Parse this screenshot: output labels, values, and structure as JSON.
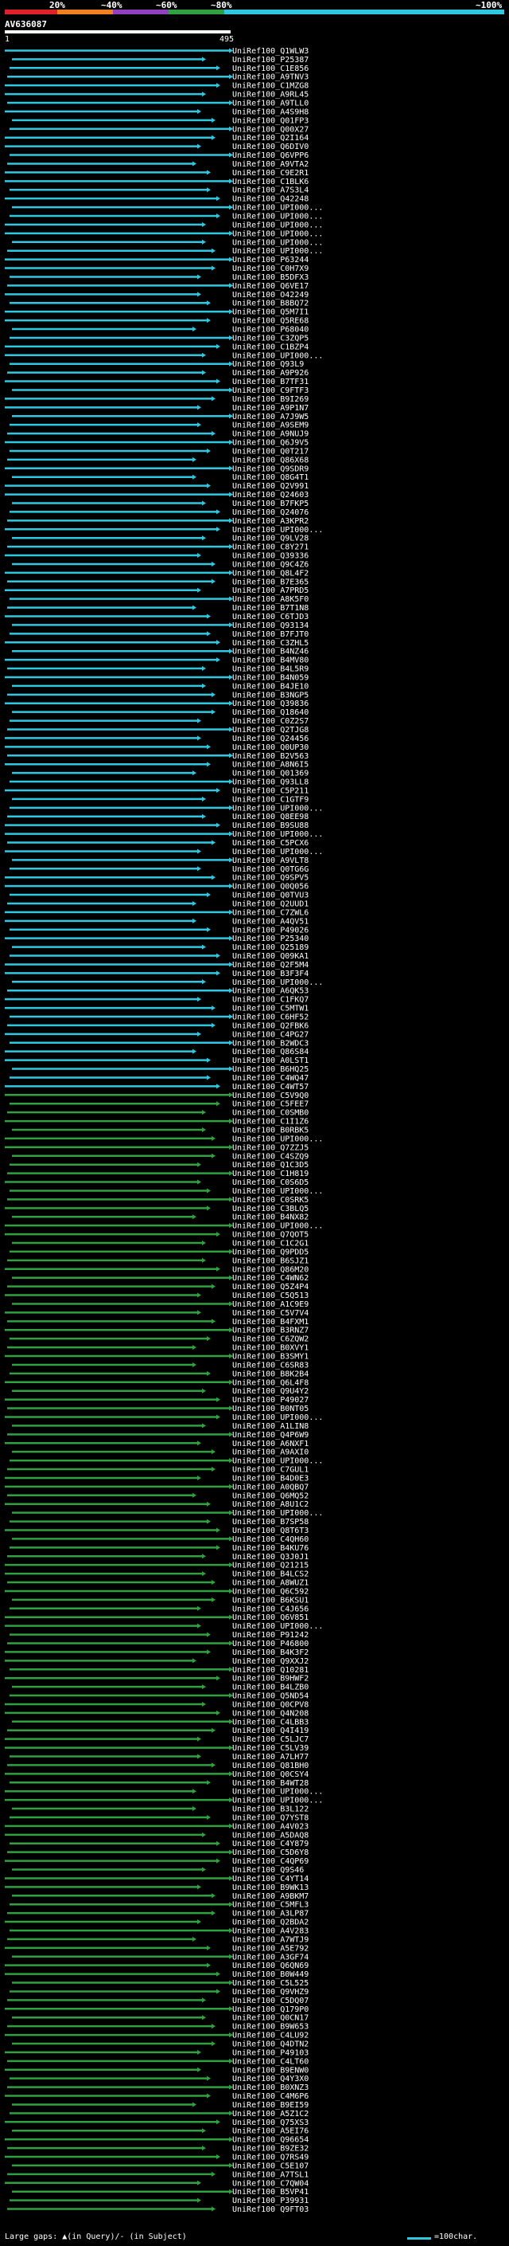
{
  "identity_scale": {
    "labels": [
      "20%",
      "~40%",
      "~60%",
      "~80%",
      "~100%"
    ],
    "colors": [
      "#e0202a",
      "#f08020",
      "#9040c0",
      "#30a040",
      "#30c8e0"
    ]
  },
  "query": {
    "name": "AV636087",
    "start": "1",
    "end": "495",
    "length": 495
  },
  "hits": [
    "UniRef100_Q1WLW3",
    "UniRef100_P25387",
    "UniRef100_C1E856",
    "UniRef100_A9TNV3",
    "UniRef100_C1MZG8",
    "UniRef100_A9RL45",
    "UniRef100_A9TLL0",
    "UniRef100_A4S9H8",
    "UniRef100_Q01FP3",
    "UniRef100_Q00X27",
    "UniRef100_Q2I164",
    "UniRef100_Q6DIV0",
    "UniRef100_Q6VPP6",
    "UniRef100_A9VTA2",
    "UniRef100_C9E2R1",
    "UniRef100_C1BLK6",
    "UniRef100_A7S3L4",
    "UniRef100_Q42248",
    "UniRef100_UPI000...",
    "UniRef100_UPI000...",
    "UniRef100_UPI000...",
    "UniRef100_UPI000...",
    "UniRef100_UPI000...",
    "UniRef100_UPI000...",
    "UniRef100_P63244",
    "UniRef100_C0H7X9",
    "UniRef100_B5DFX3",
    "UniRef100_Q6VE17",
    "UniRef100_O42249",
    "UniRef100_B8BQ72",
    "UniRef100_Q5M7I1",
    "UniRef100_Q5RE68",
    "UniRef100_P68040",
    "UniRef100_C3ZQP5",
    "UniRef100_C1BZP4",
    "UniRef100_UPI000...",
    "UniRef100_Q93L9",
    "UniRef100_A9P926",
    "UniRef100_B7TF31",
    "UniRef100_C9FTF3",
    "UniRef100_B9I269",
    "UniRef100_A9P1N7",
    "UniRef100_A7J9W5",
    "UniRef100_A9SEM9",
    "UniRef100_A9NUJ9",
    "UniRef100_Q6J9V5",
    "UniRef100_Q0T217",
    "UniRef100_Q86X68",
    "UniRef100_Q9SDR9",
    "UniRef100_Q8G4T1",
    "UniRef100_Q2V991",
    "UniRef100_Q24603",
    "UniRef100_B7FKP5",
    "UniRef100_Q24076",
    "UniRef100_A3KPR2",
    "UniRef100_UPI000...",
    "UniRef100_Q9LV28",
    "UniRef100_C8Y271",
    "UniRef100_Q39336",
    "UniRef100_Q9C4Z6",
    "UniRef100_Q8L4F2",
    "UniRef100_B7E365",
    "UniRef100_A7PRD5",
    "UniRef100_A8K5F0",
    "UniRef100_B7T1N8",
    "UniRef100_C6TJD3",
    "UniRef100_Q93134",
    "UniRef100_B7FJT0",
    "UniRef100_C3ZHL5",
    "UniRef100_B4NZ46",
    "UniRef100_B4MV80",
    "UniRef100_B4L5R9",
    "UniRef100_B4N059",
    "UniRef100_B4JE10",
    "UniRef100_B3NGP5",
    "UniRef100_Q39836",
    "UniRef100_Q18640",
    "UniRef100_C0Z2S7",
    "UniRef100_Q2TJG8",
    "UniRef100_Q24456",
    "UniRef100_Q0UP30",
    "UniRef100_B2V563",
    "UniRef100_A8N6I5",
    "UniRef100_Q01369",
    "UniRef100_Q93LL8",
    "UniRef100_C5P211",
    "UniRef100_C1GTF9",
    "UniRef100_UPI000...",
    "UniRef100_Q8EE98",
    "UniRef100_B9SU88",
    "UniRef100_UPI000...",
    "UniRef100_C5PCX6",
    "UniRef100_UPI000...",
    "UniRef100_A9VLT8",
    "UniRef100_Q0TG6G",
    "UniRef100_Q9SPV5",
    "UniRef100_Q0Q056",
    "UniRef100_Q0TVU3",
    "UniRef100_Q2UUD1",
    "UniRef100_C7ZWL6",
    "UniRef100_A4QV51",
    "UniRef100_P49026",
    "UniRef100_P25340",
    "UniRef100_Q25189",
    "UniRef100_Q09KA1",
    "UniRef100_Q2F5M4",
    "UniRef100_B3F3F4",
    "UniRef100_UPI000...",
    "UniRef100_A6QK53",
    "UniRef100_C1FKQ7",
    "UniRef100_C5MTW1",
    "UniRef100_C6HF52",
    "UniRef100_Q2FBK6",
    "UniRef100_C4PG27",
    "UniRef100_B2WDC3",
    "UniRef100_Q86S84",
    "UniRef100_A0LST1",
    "UniRef100_B6HQ25",
    "UniRef100_C4WQ47",
    "UniRef100_C4WT57",
    "UniRef100_C5V9Q0",
    "UniRef100_C5FEE7",
    "UniRef100_C0SMB0",
    "UniRef100_C1I1Z6",
    "UniRef100_B0RBK5",
    "UniRef100_UPI000...",
    "UniRef100_Q7ZZJ5",
    "UniRef100_C4SZQ9",
    "UniRef100_Q1C3D5",
    "UniRef100_C1H819",
    "UniRef100_C0S6D5",
    "UniRef100_UPI000...",
    "UniRef100_C0SRK5",
    "UniRef100_C3BLQ5",
    "UniRef100_B4NX82",
    "UniRef100_UPI000...",
    "UniRef100_Q7QOT5",
    "UniRef100_C1C2G1",
    "UniRef100_Q9PDD5",
    "UniRef100_B6SJZ1",
    "UniRef100_Q86M20",
    "UniRef100_C4WN62",
    "UniRef100_Q5Z4P4",
    "UniRef100_C5Q513",
    "UniRef100_A1C9E9",
    "UniRef100_C5V7V4",
    "UniRef100_B4FXM1",
    "UniRef100_B3RNZ7",
    "UniRef100_C6ZQW2",
    "UniRef100_B0XVY1",
    "UniRef100_B3SMY1",
    "UniRef100_C6SR83",
    "UniRef100_B8K2B4",
    "UniRef100_Q6L4F8",
    "UniRef100_Q9U4Y2",
    "UniRef100_P49027",
    "UniRef100_B0NT05",
    "UniRef100_UPI000...",
    "UniRef100_A1LIN8",
    "UniRef100_Q4P6W9",
    "UniRef100_A6NXF1",
    "UniRef100_A9AXI0",
    "UniRef100_UPI000...",
    "UniRef100_C7GUL1",
    "UniRef100_B4D0E3",
    "UniRef100_A0QBQ7",
    "UniRef100_Q6MQ52",
    "UniRef100_A8U1C2",
    "UniRef100_UPI000...",
    "UniRef100_B7SP58",
    "UniRef100_Q8T6T3",
    "UniRef100_C4QH60",
    "UniRef100_B4KU76",
    "UniRef100_Q3J0J1",
    "UniRef100_Q21215",
    "UniRef100_B4LCS2",
    "UniRef100_A8WUZ1",
    "UniRef100_Q6C592",
    "UniRef100_B6KSU1",
    "UniRef100_C4J656",
    "UniRef100_Q6V851",
    "UniRef100_UPI000...",
    "UniRef100_P91242",
    "UniRef100_P46800",
    "UniRef100_B4K3F2",
    "UniRef100_Q9XXJ2",
    "UniRef100_Q10281",
    "UniRef100_B9HWF2",
    "UniRef100_B4LZB0",
    "UniRef100_Q5ND54",
    "UniRef100_Q0CPV8",
    "UniRef100_Q4N208",
    "UniRef100_C4LBB3",
    "UniRef100_Q4I419",
    "UniRef100_C5LJC7",
    "UniRef100_C5LV39",
    "UniRef100_A7LH77",
    "UniRef100_Q81BH0",
    "UniRef100_Q0CSY4",
    "UniRef100_B4WT28",
    "UniRef100_UPI000...",
    "UniRef100_UPI000...",
    "UniRef100_B3L122",
    "UniRef100_Q7YST8",
    "UniRef100_A4V023",
    "UniRef100_A5DAQ8",
    "UniRef100_C4Y879",
    "UniRef100_C5D6Y8",
    "UniRef100_C4QP69",
    "UniRef100_Q9S46",
    "UniRef100_C4YT14",
    "UniRef100_B9WK13",
    "UniRef100_A9BKM7",
    "UniRef100_C5MFL3",
    "UniRef100_A3LP87",
    "UniRef100_Q2BDA2",
    "UniRef100_A4V283",
    "UniRef100_A7WTJ9",
    "UniRef100_A5E792",
    "UniRef100_A3GF74",
    "UniRef100_Q6QN69",
    "UniRef100_B0W449",
    "UniRef100_C5L525",
    "UniRef100_Q9VHZ9",
    "UniRef100_C5DQ07",
    "UniRef100_Q179P0",
    "UniRef100_Q0CN17",
    "UniRef100_B9W653",
    "UniRef100_C4LU92",
    "UniRef100_Q4DTN2",
    "UniRef100_P49103",
    "UniRef100_C4LT60",
    "UniRef100_B9ENW0",
    "UniRef100_Q4Y3X0",
    "UniRef100_B0XNZ3",
    "UniRef100_C4M6P6",
    "UniRef100_B9EI59",
    "UniRef100_A5Z1C2",
    "UniRef100_Q75XS3",
    "UniRef100_A5EI76",
    "UniRef100_Q96654",
    "UniRef100_B9ZE32",
    "UniRef100_Q7RS49",
    "UniRef100_C5E107",
    "UniRef100_A7TSL1",
    "UniRef100_C7QW04",
    "UniRef100_B5VP41",
    "UniRef100_P39931",
    "UniRef100_Q9FT03"
  ],
  "footer": {
    "gap_legend": "Large gaps: ▲(in Query)/- (in Subject)",
    "scale_label": "=100char."
  }
}
